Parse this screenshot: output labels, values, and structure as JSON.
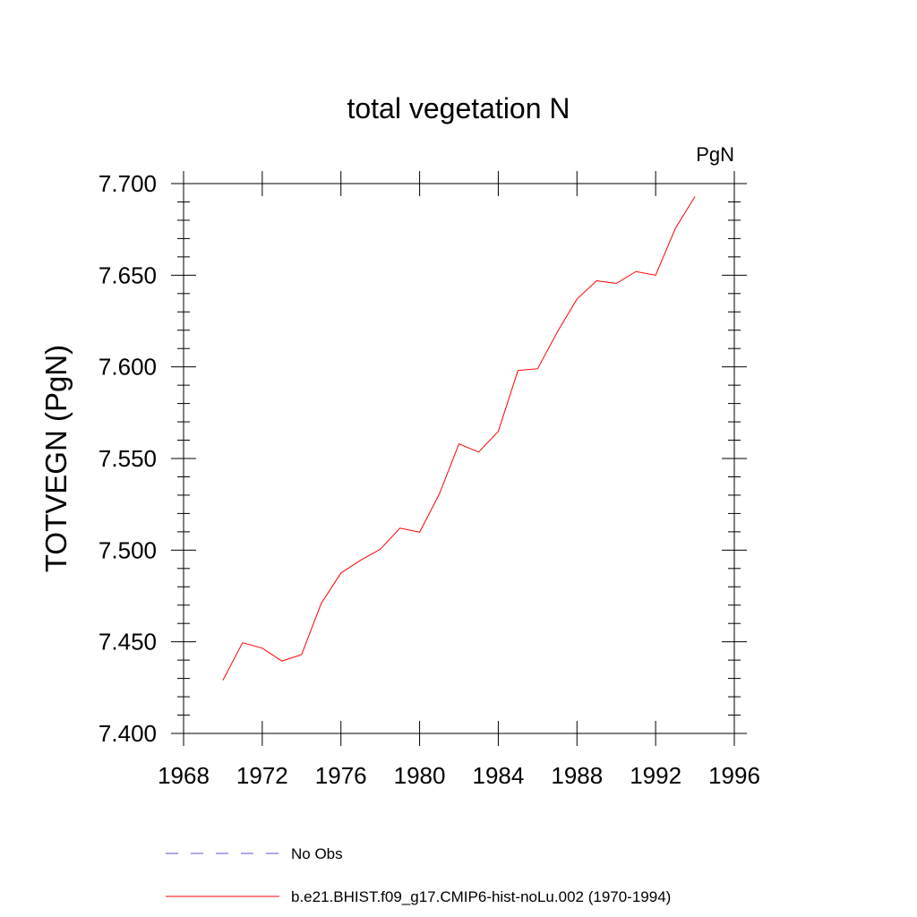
{
  "chart_data": {
    "type": "line",
    "title": "total vegetation N",
    "units": "PgN",
    "xlabel": "",
    "ylabel": "TOTVEGN  (PgN)",
    "xlim": [
      1968,
      1996
    ],
    "ylim": [
      7.4,
      7.7
    ],
    "x_ticks": [
      1968,
      1972,
      1976,
      1980,
      1984,
      1988,
      1992,
      1996
    ],
    "x_tick_labels": [
      "1968",
      "1972",
      "1976",
      "1980",
      "1984",
      "1988",
      "1992",
      "1996"
    ],
    "y_ticks": [
      7.4,
      7.45,
      7.5,
      7.55,
      7.6,
      7.65,
      7.7
    ],
    "y_tick_labels": [
      "7.400",
      "7.450",
      "7.500",
      "7.550",
      "7.600",
      "7.650",
      "7.700"
    ],
    "grid": false,
    "legend_position": "bottom",
    "series": [
      {
        "name": "b.e21.BHIST.f09_g17.CMIP6-hist-noLu.002 (1970-1994)",
        "color": "#ff0000",
        "style": "solid",
        "x": [
          1970,
          1971,
          1972,
          1973,
          1974,
          1975,
          1976,
          1977,
          1978,
          1979,
          1980,
          1981,
          1982,
          1983,
          1984,
          1985,
          1986,
          1987,
          1988,
          1989,
          1990,
          1991,
          1992,
          1993,
          1994
        ],
        "y": [
          7.429,
          7.4495,
          7.4465,
          7.4395,
          7.443,
          7.471,
          7.4875,
          7.4945,
          7.5005,
          7.512,
          7.5098,
          7.5305,
          7.558,
          7.5535,
          7.5648,
          7.598,
          7.599,
          7.619,
          7.637,
          7.647,
          7.6455,
          7.652,
          7.65,
          7.6755,
          7.693
        ]
      }
    ],
    "legend": [
      {
        "label": "No Obs",
        "color": "#5555cc",
        "style": "dashed"
      },
      {
        "label": "b.e21.BHIST.f09_g17.CMIP6-hist-noLu.002 (1970-1994)",
        "color": "#ff0000",
        "style": "solid"
      }
    ]
  }
}
